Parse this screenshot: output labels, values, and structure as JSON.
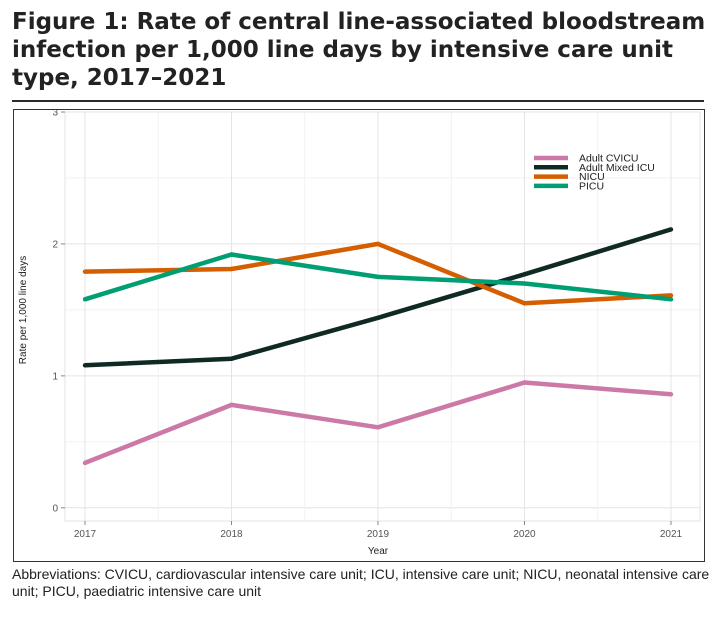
{
  "figure": {
    "title": "Figure 1: Rate of central line-associated bloodstream infection per 1,000 line days by intensive care unit type, 2017–2021",
    "footnote": "Abbreviations: CVICU, cardiovascular intensive care unit; ICU, intensive care unit; NICU, neonatal intensive care unit; PICU, paediatric intensive care unit"
  },
  "chart_data": {
    "type": "line",
    "title": "",
    "xlabel": "Year",
    "ylabel": "Rate per 1,000 line days",
    "x": [
      "2017",
      "2018",
      "2019",
      "2020",
      "2021"
    ],
    "y_ticks": [
      "0",
      "1",
      "2",
      "3"
    ],
    "ylim": [
      -0.1,
      3.0
    ],
    "grid": true,
    "legend_position": "top-right",
    "series": [
      {
        "name": "Adult CVICU",
        "color": "#cc79a7",
        "values": [
          0.34,
          0.78,
          0.61,
          0.95,
          0.86
        ]
      },
      {
        "name": "Adult Mixed ICU",
        "color": "#0f2a24",
        "values": [
          1.08,
          1.13,
          1.44,
          1.77,
          2.11
        ]
      },
      {
        "name": "NICU",
        "color": "#d55e00",
        "values": [
          1.79,
          1.81,
          2.0,
          1.55,
          1.61
        ]
      },
      {
        "name": "PICU",
        "color": "#009e73",
        "values": [
          1.58,
          1.92,
          1.75,
          1.7,
          1.58
        ]
      }
    ]
  }
}
